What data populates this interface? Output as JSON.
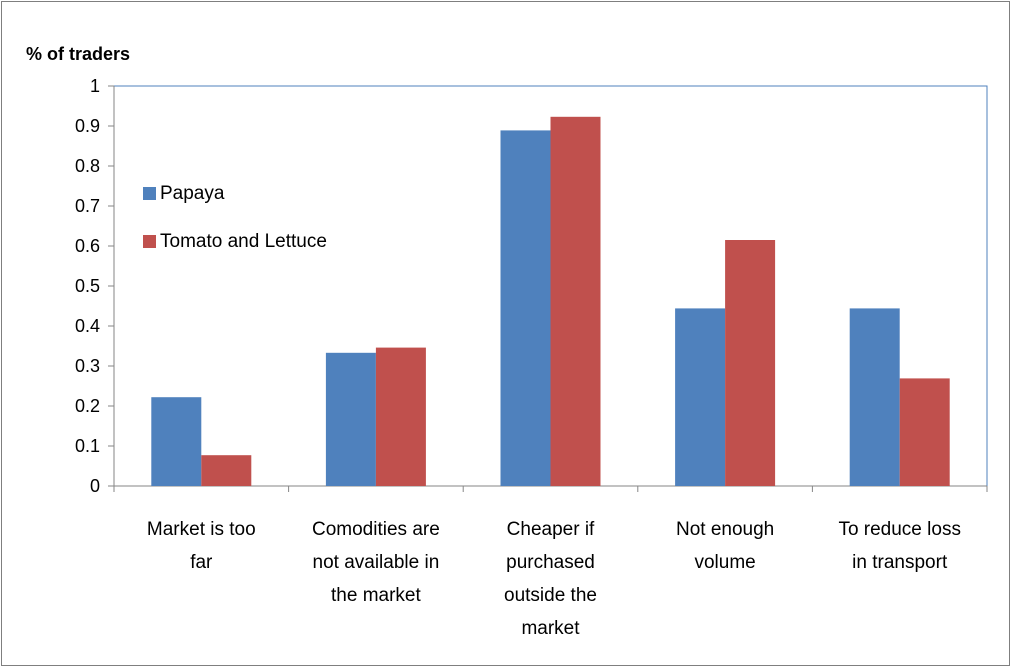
{
  "chart_data": {
    "type": "bar",
    "title": "",
    "ylabel": "% of traders",
    "xlabel": "",
    "ylim": [
      0,
      1
    ],
    "yticks": [
      "0",
      "0.1",
      "0.2",
      "0.3",
      "0.4",
      "0.5",
      "0.6",
      "0.7",
      "0.8",
      "0.9",
      "1"
    ],
    "categories": [
      [
        "Market is too",
        "far"
      ],
      [
        "Comodities are",
        "not available in",
        "the market"
      ],
      [
        "Cheaper if",
        "purchased",
        "outside the",
        "market"
      ],
      [
        "Not enough",
        "volume"
      ],
      [
        "To reduce loss",
        "in transport"
      ]
    ],
    "series": [
      {
        "name": "Papaya",
        "color": "#4f81bd",
        "values": [
          0.222,
          0.333,
          0.889,
          0.444,
          0.444
        ]
      },
      {
        "name": "Tomato and Lettuce",
        "color": "#c0504d",
        "values": [
          0.077,
          0.346,
          0.923,
          0.615,
          0.269
        ]
      }
    ],
    "grid": false,
    "legend": "inside-left"
  }
}
